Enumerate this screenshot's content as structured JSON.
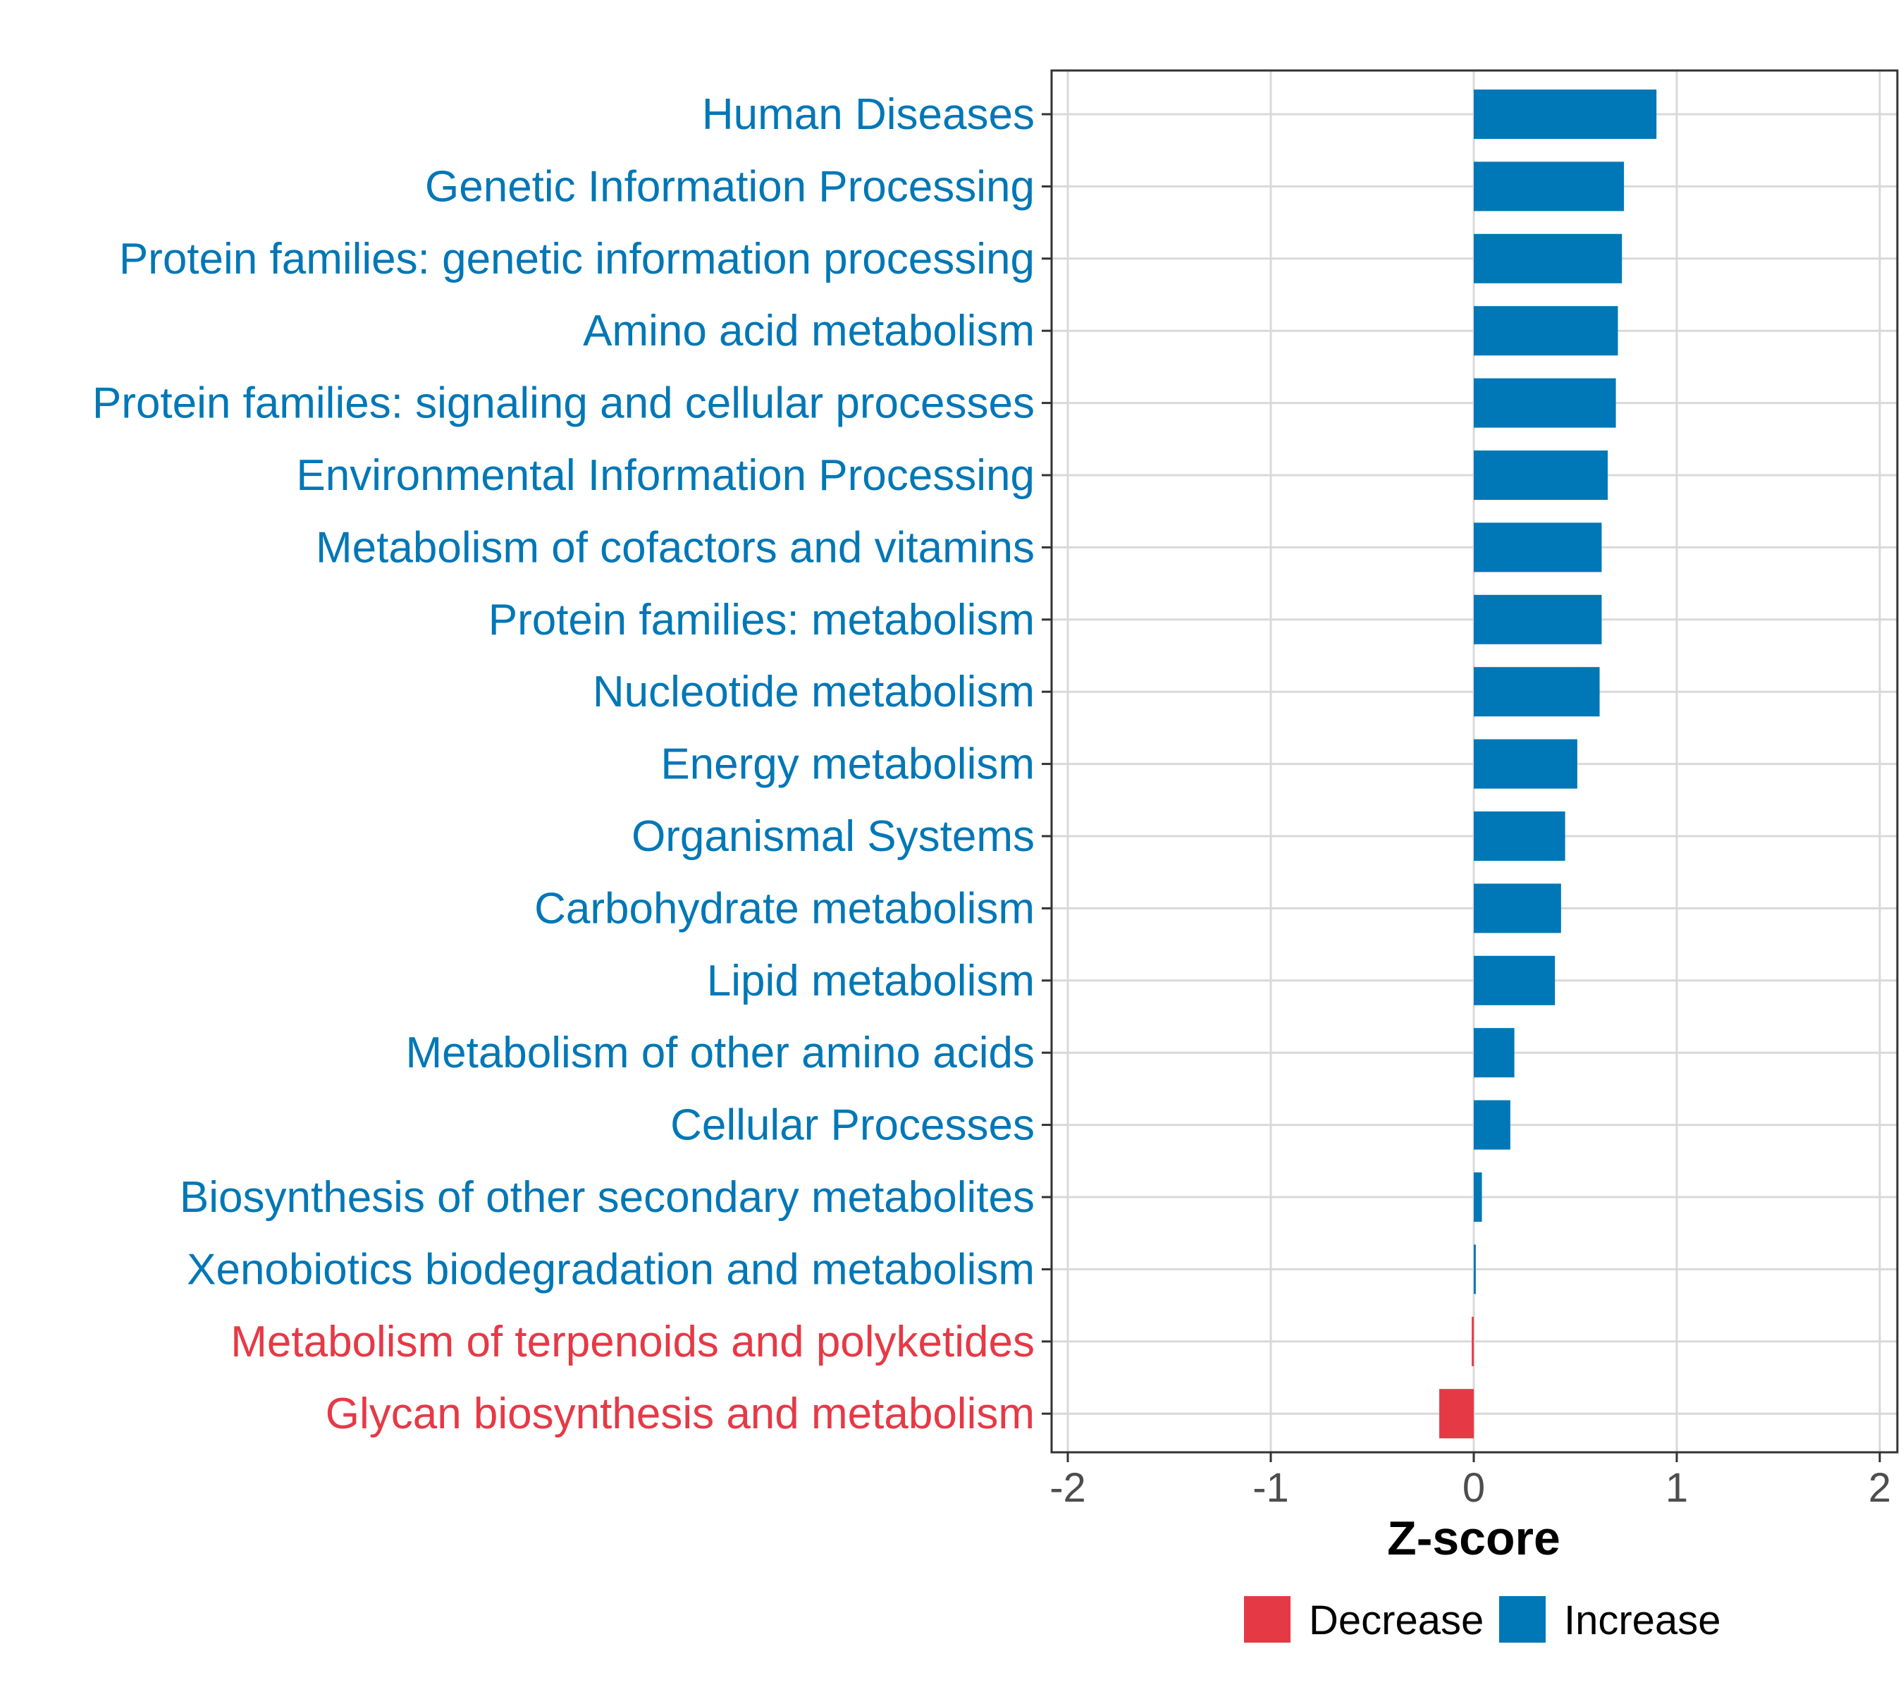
{
  "chart_data": {
    "type": "bar",
    "orientation": "horizontal",
    "title": "",
    "xlabel": "Z-score",
    "ylabel": "",
    "xlim": [
      -2,
      2
    ],
    "xticks": [
      -2,
      -1,
      0,
      1,
      2
    ],
    "xtick_labels": [
      "-2",
      "-1",
      "0",
      "1",
      "2"
    ],
    "grid": true,
    "legend_position": "bottom",
    "colors": {
      "Decrease": "#e63946",
      "Increase": "#0077b6"
    },
    "legend": [
      {
        "name": "Decrease",
        "color": "#e63946"
      },
      {
        "name": "Increase",
        "color": "#0077b6"
      }
    ],
    "bars": [
      {
        "category": "Human Diseases",
        "value": 0.9,
        "direction": "Increase"
      },
      {
        "category": "Genetic Information Processing",
        "value": 0.74,
        "direction": "Increase"
      },
      {
        "category": "Protein families: genetic information processing",
        "value": 0.73,
        "direction": "Increase"
      },
      {
        "category": "Amino acid metabolism",
        "value": 0.71,
        "direction": "Increase"
      },
      {
        "category": "Protein families: signaling and cellular processes",
        "value": 0.7,
        "direction": "Increase"
      },
      {
        "category": "Environmental Information Processing",
        "value": 0.66,
        "direction": "Increase"
      },
      {
        "category": "Metabolism of cofactors and vitamins",
        "value": 0.63,
        "direction": "Increase"
      },
      {
        "category": "Protein families: metabolism",
        "value": 0.63,
        "direction": "Increase"
      },
      {
        "category": "Nucleotide metabolism",
        "value": 0.62,
        "direction": "Increase"
      },
      {
        "category": "Energy metabolism",
        "value": 0.51,
        "direction": "Increase"
      },
      {
        "category": "Organismal Systems",
        "value": 0.45,
        "direction": "Increase"
      },
      {
        "category": "Carbohydrate metabolism",
        "value": 0.43,
        "direction": "Increase"
      },
      {
        "category": "Lipid metabolism",
        "value": 0.4,
        "direction": "Increase"
      },
      {
        "category": "Metabolism of other amino acids",
        "value": 0.2,
        "direction": "Increase"
      },
      {
        "category": "Cellular Processes",
        "value": 0.18,
        "direction": "Increase"
      },
      {
        "category": "Biosynthesis of other secondary metabolites",
        "value": 0.04,
        "direction": "Increase"
      },
      {
        "category": "Xenobiotics biodegradation and metabolism",
        "value": 0.01,
        "direction": "Increase"
      },
      {
        "category": "Metabolism of terpenoids and polyketides",
        "value": -0.01,
        "direction": "Decrease"
      },
      {
        "category": "Glycan biosynthesis and metabolism",
        "value": -0.17,
        "direction": "Decrease"
      }
    ]
  }
}
